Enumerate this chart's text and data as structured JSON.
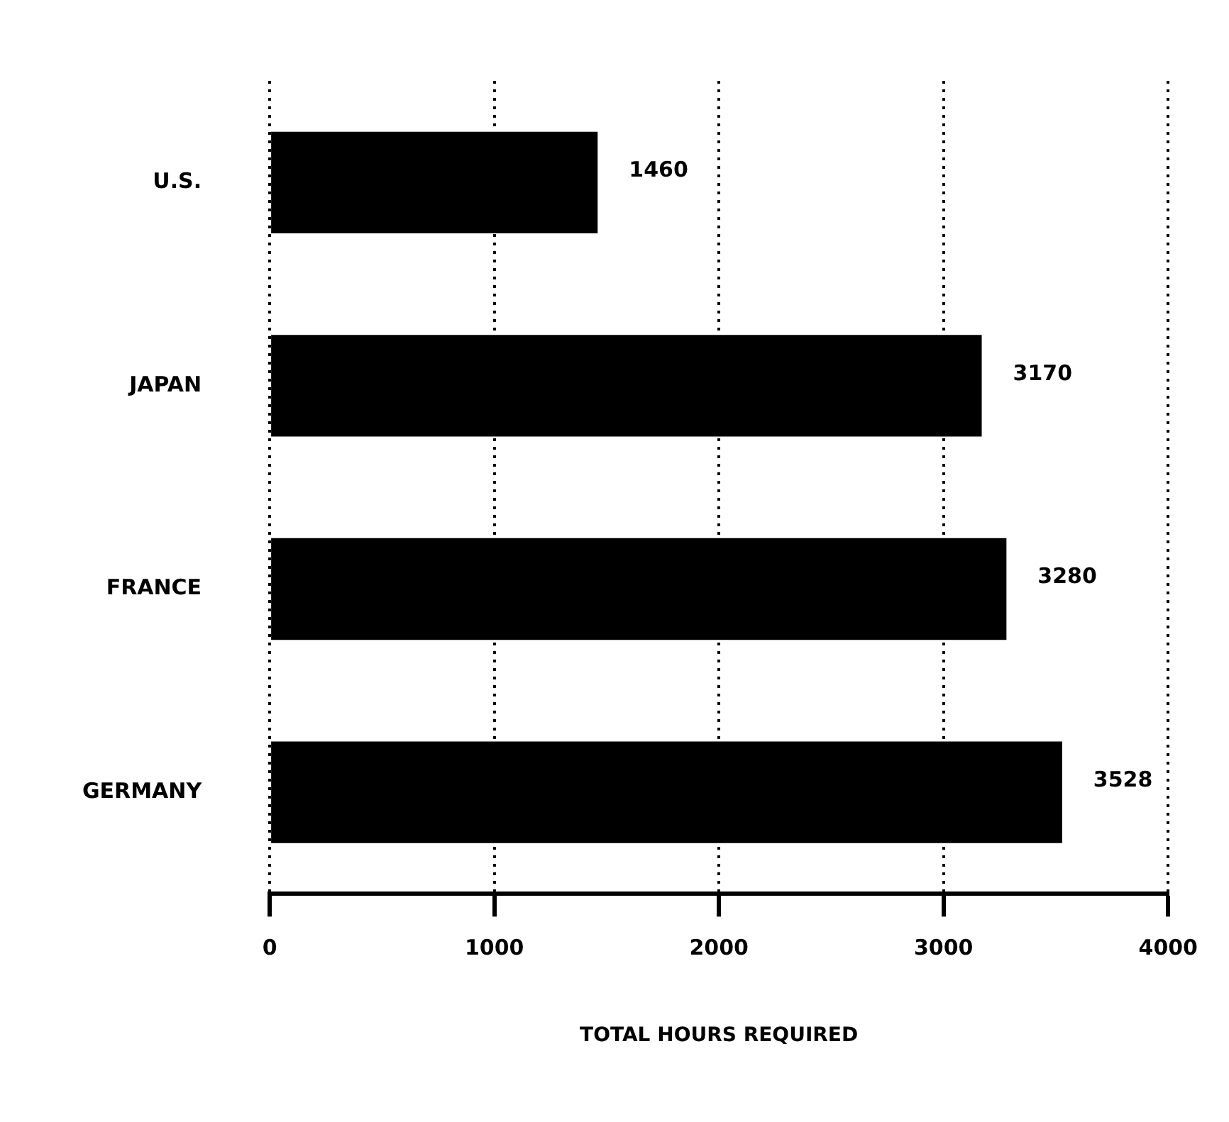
{
  "chart_data": {
    "type": "bar",
    "orientation": "horizontal",
    "categories": [
      "U.S.",
      "JAPAN",
      "FRANCE",
      "GERMANY"
    ],
    "values": [
      1460,
      3170,
      3280,
      3528
    ],
    "color": "#000000",
    "data_labels": true,
    "xlabel": "TOTAL HOURS REQUIRED",
    "xlim": [
      0,
      4000
    ],
    "xticks": [
      0,
      1000,
      2000,
      3000,
      4000
    ],
    "grid": "x",
    "legend": false
  }
}
